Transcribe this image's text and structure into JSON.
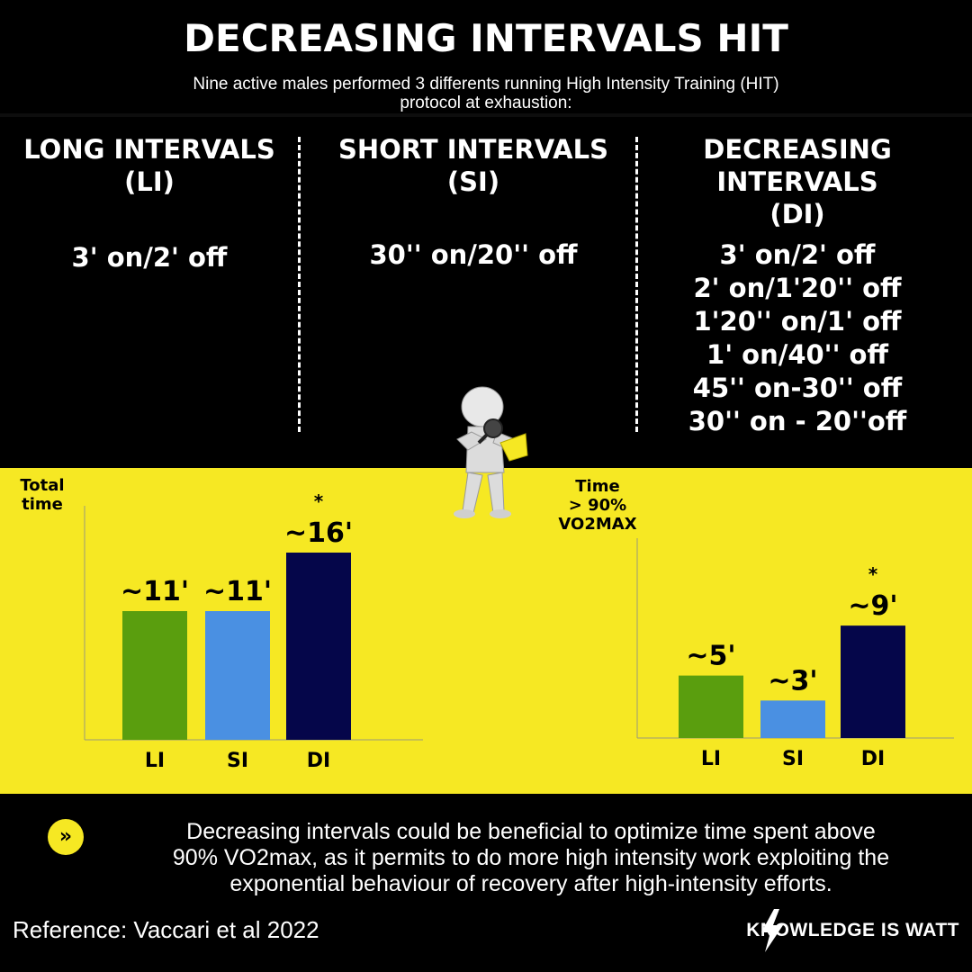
{
  "header": {
    "title": "DECREASING INTERVALS HIT",
    "subtitle_line1": "Nine active males performed 3 differents running High Intensity Training (HIT)",
    "subtitle_line2": "protocol at exhaustion:"
  },
  "protocols": [
    {
      "heading": [
        "LONG INTERVALS",
        "(LI)"
      ],
      "details": [
        "3' on/2' off"
      ]
    },
    {
      "heading": [
        "SHORT INTERVALS",
        "(SI)"
      ],
      "details": [
        "30'' on/20'' off"
      ]
    },
    {
      "heading": [
        "DECREASING",
        "INTERVALS",
        "(DI)"
      ],
      "details": [
        "3' on/2' off",
        "2' on/1'20'' off",
        "1'20'' on/1' off",
        "1' on/40'' off",
        "45'' on-30'' off",
        "30'' on - 20''off"
      ]
    }
  ],
  "colors": {
    "LI": "#5a9e0e",
    "SI": "#4a90e2",
    "DI": "#05064a",
    "yellow": "#f6e823"
  },
  "chart_data": [
    {
      "type": "bar",
      "title": "",
      "ylabel": [
        "Total",
        "time"
      ],
      "categories": [
        "LI",
        "SI",
        "DI"
      ],
      "values": [
        11,
        11,
        16
      ],
      "data_labels": [
        "~11'",
        "~11'",
        "~16'"
      ],
      "significance": [
        "",
        "",
        "*"
      ],
      "ylim": [
        0,
        20
      ]
    },
    {
      "type": "bar",
      "title": "",
      "ylabel": [
        "Time",
        "> 90%",
        "VO2MAX"
      ],
      "categories": [
        "LI",
        "SI",
        "DI"
      ],
      "values": [
        5,
        3,
        9
      ],
      "data_labels": [
        "~5'",
        "~3'",
        "~9'"
      ],
      "significance": [
        "",
        "",
        "*"
      ],
      "ylim": [
        0,
        16
      ]
    }
  ],
  "takeaway": {
    "icon": "double-chevron-right-icon",
    "lines": [
      "Decreasing intervals could be beneficial to optimize time spent above",
      "90% VO2max, as it permits to do more high intensity work exploiting the",
      "exponential behaviour of recovery after high-intensity efforts."
    ]
  },
  "footer": {
    "reference": "Reference: Vaccari  et al 2022",
    "brand": "KNOWLEDGE IS WATT"
  }
}
